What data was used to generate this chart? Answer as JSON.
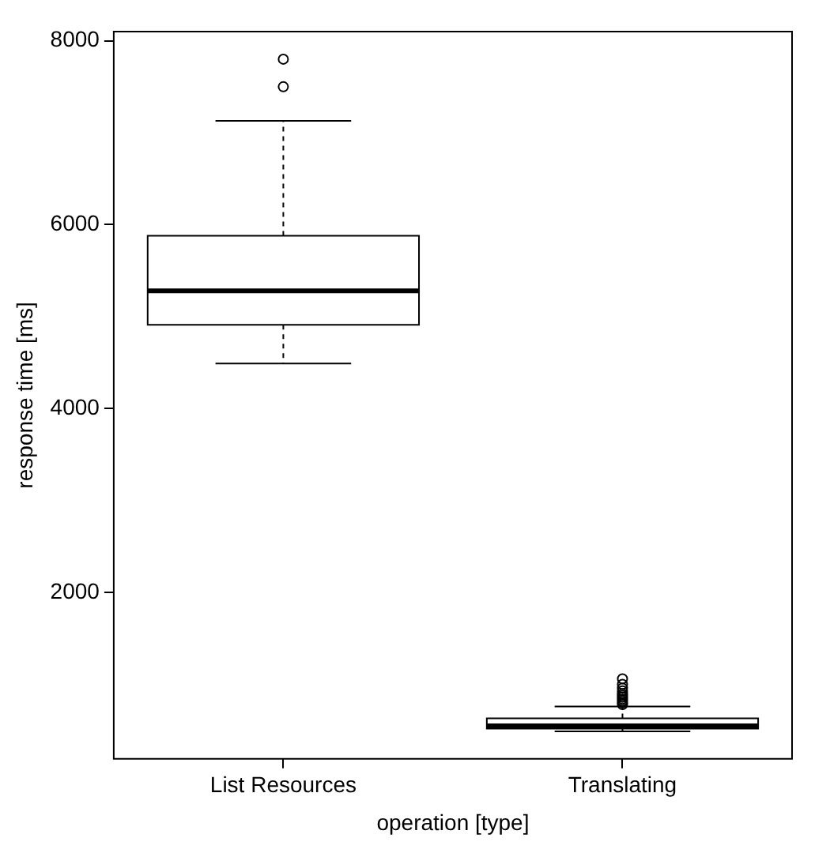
{
  "chart_data": {
    "type": "box",
    "xlabel": "operation [type]",
    "ylabel": "response time [ms]",
    "categories": [
      "List Resources",
      "Translating"
    ],
    "boxes": [
      {
        "low": 4490,
        "q1": 4910,
        "median": 5280,
        "q3": 5880,
        "high": 7130,
        "outliers": [
          7500,
          7800
        ]
      },
      {
        "low": 490,
        "q1": 520,
        "median": 550,
        "q3": 630,
        "high": 760,
        "outliers": [
          780,
          800,
          820,
          840,
          860,
          880,
          900,
          930,
          960,
          1000,
          1060
        ]
      }
    ],
    "ylim": [
      190,
      8100
    ],
    "yticks": [
      2000,
      4000,
      6000,
      8000
    ],
    "grid": false,
    "legend": false
  }
}
